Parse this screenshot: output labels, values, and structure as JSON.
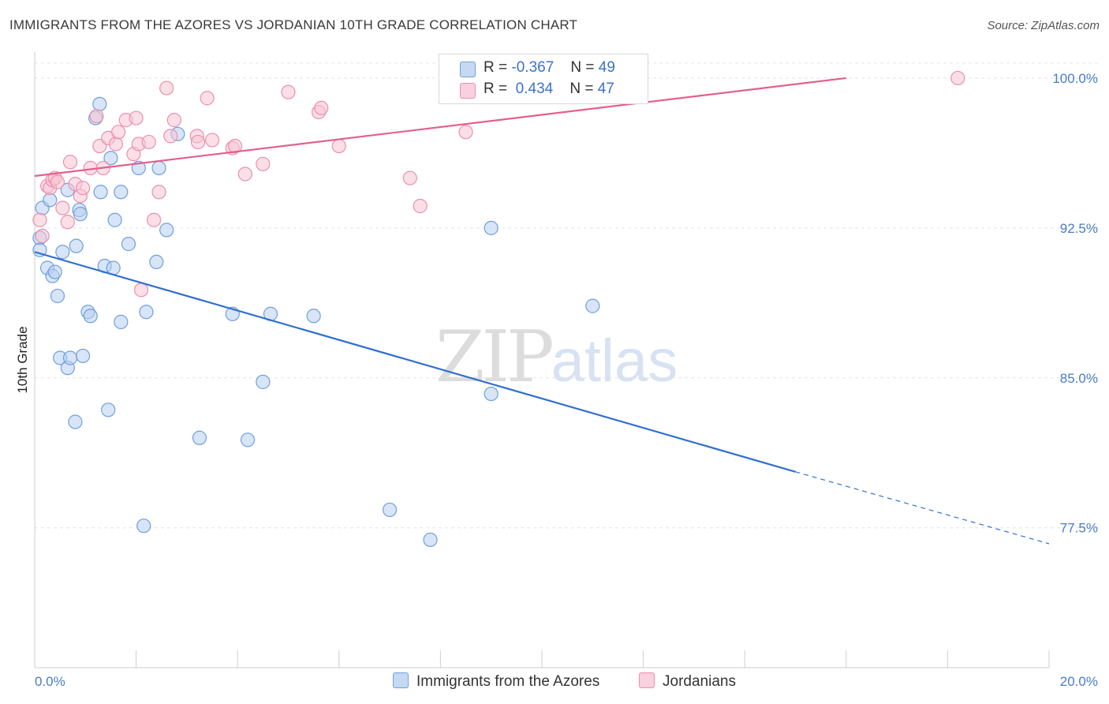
{
  "title": "IMMIGRANTS FROM THE AZORES VS JORDANIAN 10TH GRADE CORRELATION CHART",
  "source": "Source: ZipAtlas.com",
  "watermark": {
    "zip": "ZIP",
    "atlas": "atlas"
  },
  "legend": {
    "rows": [
      {
        "r_label": "R =",
        "r_value": "-0.367",
        "n_label": "N =",
        "n_value": "49"
      },
      {
        "r_label": "R =",
        "r_value": "0.434",
        "n_label": "N =",
        "n_value": "47"
      }
    ]
  },
  "colors": {
    "blue_fill": "#b8d0f0",
    "blue_stroke": "#6f9fdc",
    "blue_line": "#2f6fd0",
    "pink_fill": "#f8c4d4",
    "pink_stroke": "#eb8fae",
    "pink_line": "#e45f8d",
    "grid": "#e4e4e4",
    "tick_text": "#4a7cc8"
  },
  "chart_data": {
    "type": "scatter",
    "xlabel": "",
    "ylabel": "10th Grade",
    "xlim": [
      0,
      20
    ],
    "ylim": [
      70.5,
      101.3
    ],
    "x_tick_labels": [
      "0.0%",
      "20.0%"
    ],
    "y_ticks": [
      77.5,
      85.0,
      92.5,
      100.0
    ],
    "y_tick_labels": [
      "77.5%",
      "85.0%",
      "92.5%",
      "100.0%"
    ],
    "grid": true,
    "legend_position": "bottom",
    "series": [
      {
        "name": "Immigrants from the Azores",
        "color": "blue",
        "points": [
          [
            0.1,
            92.0
          ],
          [
            0.1,
            91.4
          ],
          [
            0.15,
            93.5
          ],
          [
            0.25,
            90.5
          ],
          [
            0.3,
            93.9
          ],
          [
            0.35,
            90.1
          ],
          [
            0.4,
            90.3
          ],
          [
            0.45,
            89.1
          ],
          [
            0.5,
            86.0
          ],
          [
            0.55,
            91.3
          ],
          [
            0.65,
            85.5
          ],
          [
            0.65,
            94.4
          ],
          [
            0.7,
            86.0
          ],
          [
            0.8,
            82.8
          ],
          [
            0.82,
            91.6
          ],
          [
            0.88,
            93.4
          ],
          [
            0.9,
            93.2
          ],
          [
            0.95,
            86.1
          ],
          [
            1.05,
            88.3
          ],
          [
            1.1,
            88.1
          ],
          [
            1.2,
            98.0
          ],
          [
            1.28,
            98.7
          ],
          [
            1.3,
            94.3
          ],
          [
            1.38,
            90.6
          ],
          [
            1.45,
            83.4
          ],
          [
            1.5,
            96.0
          ],
          [
            1.55,
            90.5
          ],
          [
            1.58,
            92.9
          ],
          [
            1.7,
            87.8
          ],
          [
            1.7,
            94.3
          ],
          [
            1.85,
            91.7
          ],
          [
            2.05,
            95.5
          ],
          [
            2.15,
            77.6
          ],
          [
            2.2,
            88.3
          ],
          [
            2.4,
            90.8
          ],
          [
            2.45,
            95.5
          ],
          [
            2.6,
            92.4
          ],
          [
            2.82,
            97.2
          ],
          [
            3.25,
            82.0
          ],
          [
            3.9,
            88.2
          ],
          [
            4.2,
            81.9
          ],
          [
            4.5,
            84.8
          ],
          [
            4.65,
            88.2
          ],
          [
            5.5,
            88.1
          ],
          [
            7.0,
            78.4
          ],
          [
            7.8,
            76.9
          ],
          [
            9.0,
            92.5
          ],
          [
            9.0,
            84.2
          ],
          [
            11.0,
            88.6
          ]
        ],
        "trend": {
          "x": [
            0.0,
            15.0
          ],
          "y": [
            91.3,
            80.3
          ]
        },
        "trend_dashed": {
          "x": [
            15.0,
            20.0
          ],
          "y": [
            80.3,
            76.7
          ]
        }
      },
      {
        "name": "Jordanians",
        "color": "pink",
        "points": [
          [
            0.1,
            92.9
          ],
          [
            0.15,
            92.1
          ],
          [
            0.25,
            94.6
          ],
          [
            0.3,
            94.5
          ],
          [
            0.35,
            94.9
          ],
          [
            0.4,
            95.0
          ],
          [
            0.45,
            94.8
          ],
          [
            0.55,
            93.5
          ],
          [
            0.65,
            92.8
          ],
          [
            0.7,
            95.8
          ],
          [
            0.8,
            94.7
          ],
          [
            0.9,
            94.1
          ],
          [
            0.95,
            94.5
          ],
          [
            1.1,
            95.5
          ],
          [
            1.22,
            98.1
          ],
          [
            1.28,
            96.6
          ],
          [
            1.35,
            95.5
          ],
          [
            1.45,
            97.0
          ],
          [
            1.6,
            96.7
          ],
          [
            1.65,
            97.3
          ],
          [
            1.8,
            97.9
          ],
          [
            1.95,
            96.2
          ],
          [
            2.0,
            98.0
          ],
          [
            2.05,
            96.7
          ],
          [
            2.1,
            89.4
          ],
          [
            2.25,
            96.8
          ],
          [
            2.35,
            92.9
          ],
          [
            2.45,
            94.3
          ],
          [
            2.6,
            99.5
          ],
          [
            2.68,
            97.1
          ],
          [
            2.75,
            97.9
          ],
          [
            3.2,
            97.1
          ],
          [
            3.22,
            96.8
          ],
          [
            3.4,
            99.0
          ],
          [
            3.5,
            96.9
          ],
          [
            3.9,
            96.5
          ],
          [
            3.95,
            96.6
          ],
          [
            4.15,
            95.2
          ],
          [
            4.5,
            95.7
          ],
          [
            5.0,
            99.3
          ],
          [
            5.6,
            98.3
          ],
          [
            5.65,
            98.5
          ],
          [
            6.0,
            96.6
          ],
          [
            7.4,
            95.0
          ],
          [
            7.6,
            93.6
          ],
          [
            8.5,
            97.3
          ],
          [
            18.2,
            100.0
          ]
        ],
        "trend": {
          "x": [
            0.0,
            16.0
          ],
          "y": [
            95.1,
            100.0
          ]
        }
      }
    ]
  }
}
